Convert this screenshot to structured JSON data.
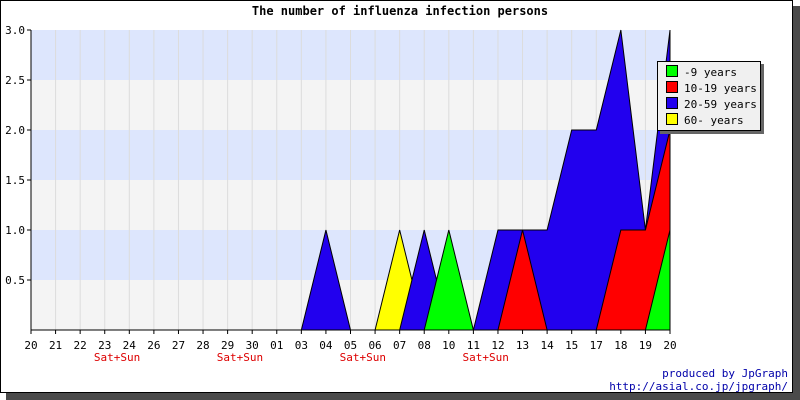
{
  "chart_data": {
    "type": "area",
    "title": "The number of influenza infection persons",
    "x": [
      "20",
      "21",
      "22",
      "23",
      "24",
      "26",
      "27",
      "28",
      "29",
      "30",
      "01",
      "03",
      "04",
      "05",
      "06",
      "07",
      "08",
      "10",
      "11",
      "12",
      "13",
      "14",
      "15",
      "17",
      "18",
      "19",
      "20"
    ],
    "weekend_label": "Sat+Sun",
    "weekend_after_indices": [
      3,
      8,
      13,
      18
    ],
    "ylim": [
      0,
      3.0
    ],
    "yticks": [
      "0.5",
      "1.0",
      "1.5",
      "2.0",
      "2.5",
      "3.0"
    ],
    "grid": true,
    "legend_position": "top-right",
    "series": [
      {
        "name": "-9 years",
        "color": "#00ff00",
        "values": [
          0,
          0,
          0,
          0,
          0,
          0,
          0,
          0,
          0,
          0,
          0,
          0,
          0,
          0,
          0,
          0,
          0,
          1,
          0,
          0,
          0,
          0,
          0,
          0,
          0,
          0,
          1
        ]
      },
      {
        "name": "10-19 years",
        "color": "#ff0000",
        "values": [
          0,
          0,
          0,
          0,
          0,
          0,
          0,
          0,
          0,
          0,
          0,
          0,
          0,
          0,
          0,
          0,
          0,
          0,
          0,
          0,
          1,
          0,
          0,
          0,
          1,
          1,
          2
        ]
      },
      {
        "name": "20-59 years",
        "color": "#2200ee",
        "values": [
          0,
          0,
          0,
          0,
          0,
          0,
          0,
          0,
          0,
          0,
          0,
          0,
          1,
          0,
          0,
          0,
          1,
          0,
          0,
          1,
          1,
          1,
          2,
          2,
          3,
          1,
          3
        ]
      },
      {
        "name": "60- years",
        "color": "#ffff00",
        "values": [
          0,
          0,
          0,
          0,
          0,
          0,
          0,
          0,
          0,
          0,
          0,
          0,
          0,
          0,
          0,
          1,
          0,
          0,
          0,
          0,
          0,
          0,
          0,
          0,
          0,
          0,
          0
        ]
      }
    ]
  },
  "credit": {
    "line1": "produced by JpGraph",
    "line2": "http://asial.co.jp/jpgraph/"
  }
}
